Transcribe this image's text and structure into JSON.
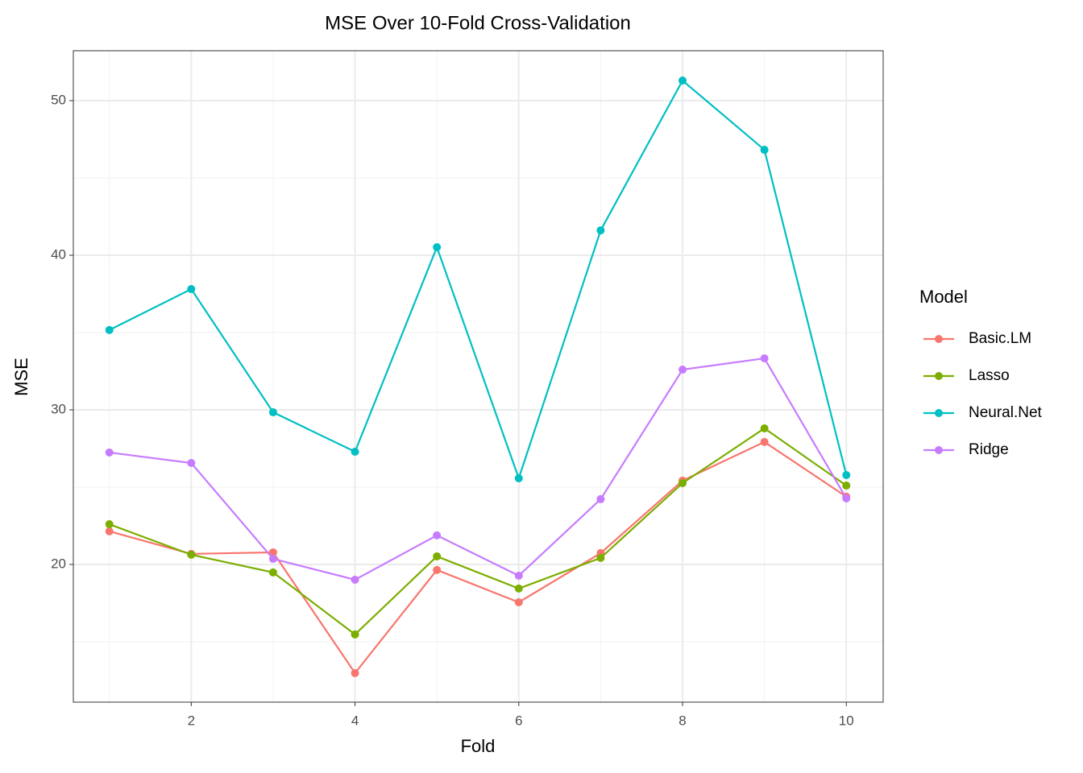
{
  "chart_data": {
    "type": "line",
    "title": "MSE Over 10-Fold Cross-Validation",
    "x_label": "Fold",
    "y_label": "MSE",
    "legend_title": "Model",
    "legend": "right",
    "grid": true,
    "x": [
      1,
      2,
      3,
      4,
      5,
      6,
      7,
      8,
      9,
      10
    ],
    "xlim": [
      0.56,
      10.45
    ],
    "xticks": [
      2,
      4,
      6,
      8,
      10
    ],
    "ylim": [
      11.09,
      53.23
    ],
    "yticks": [
      20,
      30,
      40,
      50
    ],
    "series": [
      {
        "name": "Basic.LM",
        "color": "#F8766D",
        "values": [
          22.14,
          20.68,
          20.78,
          12.97,
          19.64,
          17.55,
          20.73,
          25.42,
          27.92,
          24.38
        ]
      },
      {
        "name": "Lasso",
        "color": "#7CAE00",
        "values": [
          22.6,
          20.63,
          19.48,
          15.47,
          20.52,
          18.44,
          20.42,
          25.26,
          28.8,
          25.1
        ]
      },
      {
        "name": "Neural.Net",
        "color": "#00BFC4",
        "values": [
          35.16,
          37.81,
          29.84,
          27.29,
          40.52,
          25.57,
          41.61,
          51.3,
          46.82,
          25.78
        ]
      },
      {
        "name": "Ridge",
        "color": "#C77CFF",
        "values": [
          27.24,
          26.56,
          20.36,
          19.01,
          21.88,
          19.27,
          24.22,
          32.6,
          33.33,
          24.27
        ]
      }
    ]
  }
}
